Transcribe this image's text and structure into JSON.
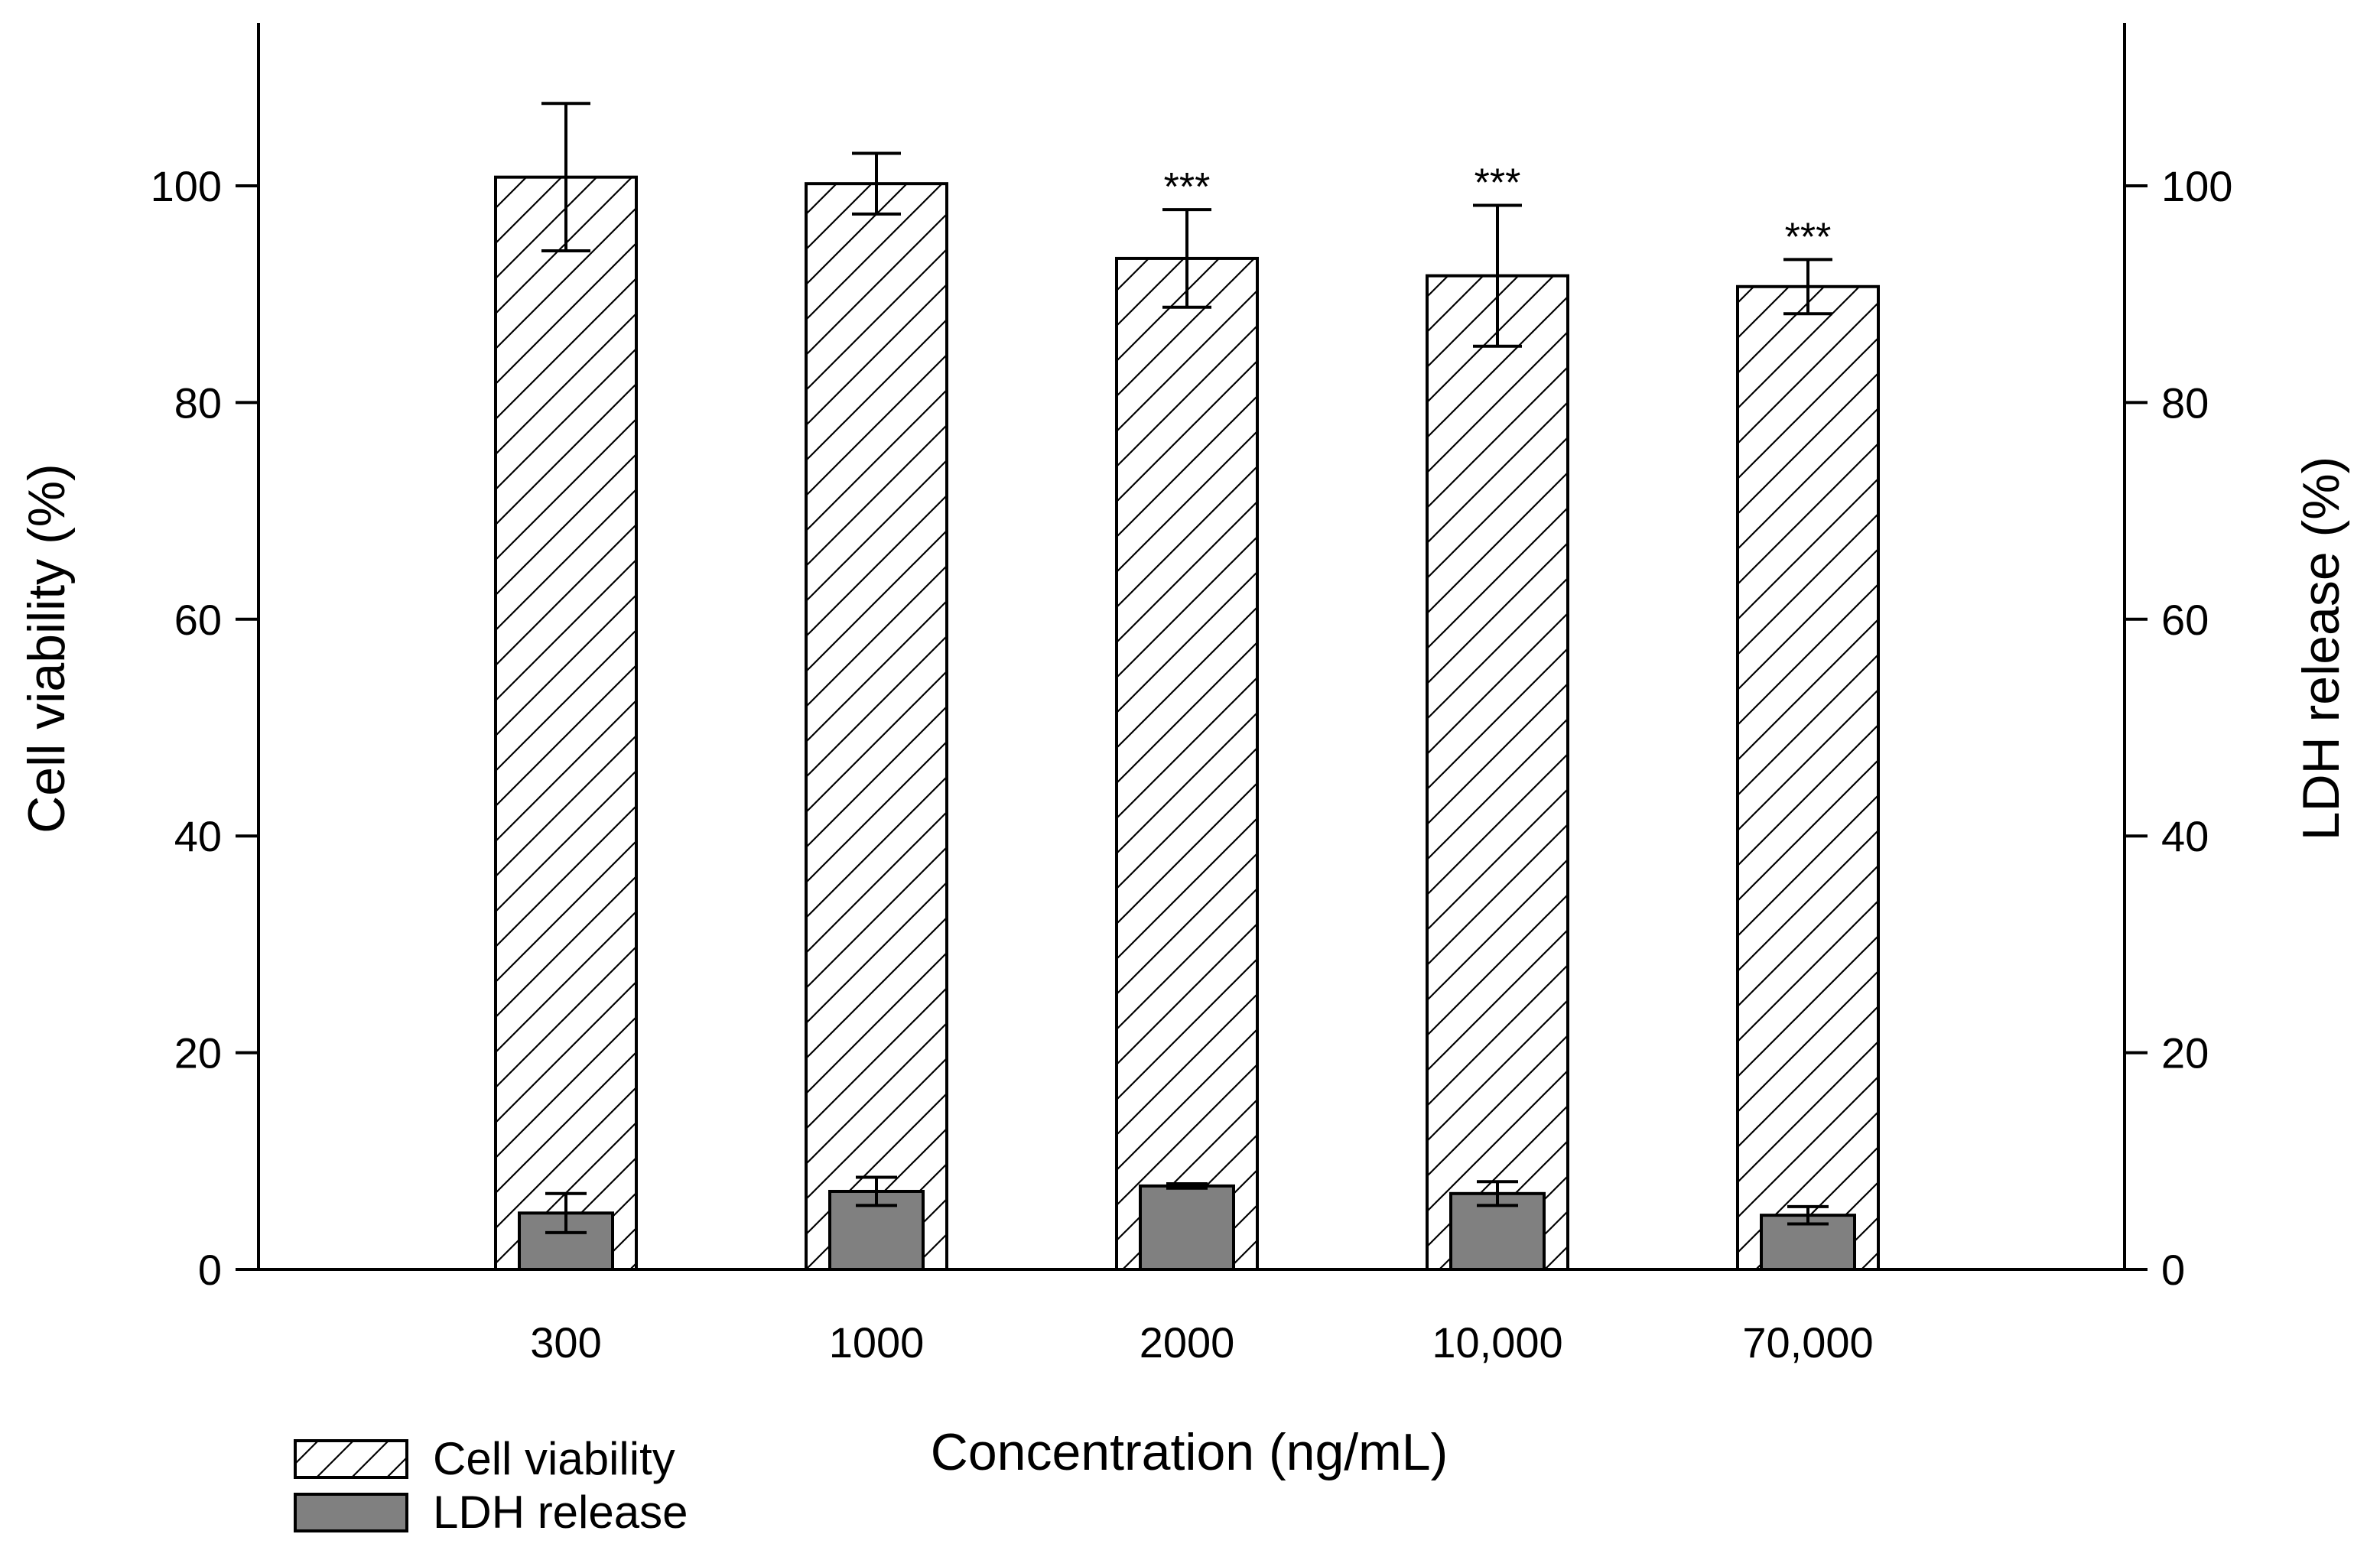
{
  "chart_data": {
    "type": "bar",
    "categories": [
      "300",
      "1000",
      "2000",
      "10,000",
      "70,000"
    ],
    "xlabel": "Concentration (ng/mL)",
    "ylabel": "Cell viability (%)",
    "y2label": "LDH release (%)",
    "ylim": [
      0,
      115
    ],
    "y2lim": [
      0,
      115
    ],
    "yticks": [
      0,
      20,
      40,
      60,
      80,
      100
    ],
    "y2ticks": [
      0,
      20,
      40,
      60,
      80,
      100
    ],
    "legend_position": "bottom-left",
    "series": [
      {
        "name": "Cell viability",
        "axis": "left",
        "style": "hatched",
        "fill": "#ffffff",
        "values": [
          100.8,
          100.2,
          93.3,
          91.7,
          90.7
        ],
        "error": [
          6.8,
          2.8,
          4.5,
          6.5,
          2.5
        ],
        "annotations": [
          "",
          "",
          "***",
          "***",
          "***"
        ]
      },
      {
        "name": "LDH release",
        "axis": "right",
        "style": "solid",
        "fill": "#808080",
        "values": [
          5.2,
          7.2,
          7.7,
          7.0,
          5.0
        ],
        "error": [
          1.8,
          1.3,
          0.2,
          1.1,
          0.8
        ]
      }
    ]
  }
}
